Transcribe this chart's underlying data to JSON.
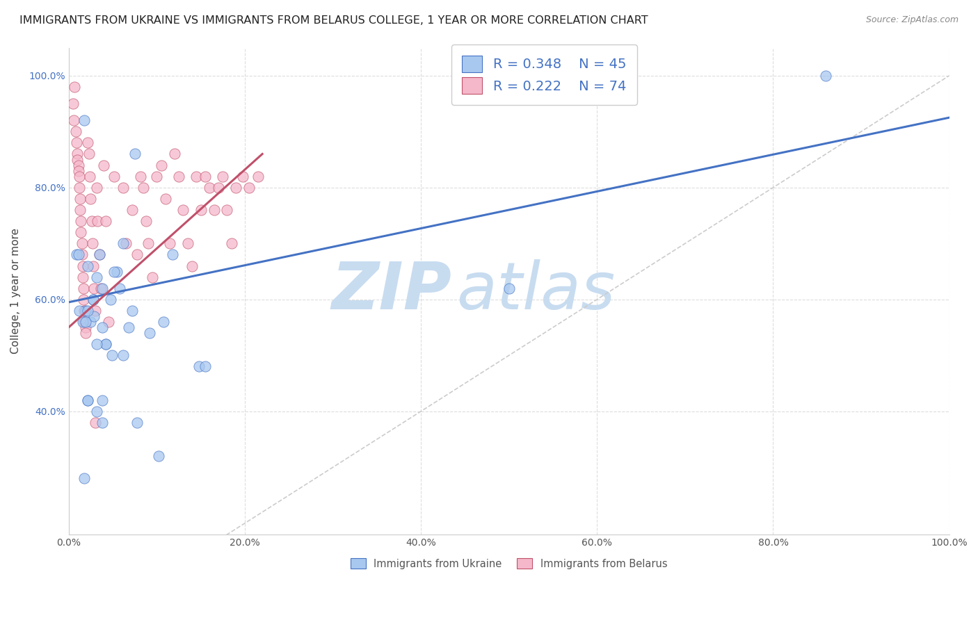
{
  "title": "IMMIGRANTS FROM UKRAINE VS IMMIGRANTS FROM BELARUS COLLEGE, 1 YEAR OR MORE CORRELATION CHART",
  "source": "Source: ZipAtlas.com",
  "ylabel": "College, 1 year or more",
  "legend_r1": "R = 0.348",
  "legend_n1": "N = 45",
  "legend_r2": "R = 0.222",
  "legend_n2": "N = 74",
  "color_ukraine": "#A8C8F0",
  "color_belarus": "#F5B8CB",
  "line_color_ukraine": "#4472C4",
  "line_color_belarus": "#C0506A",
  "diagonal_color": "#CCCCCC",
  "watermark_zip_color": "#C8DCF0",
  "watermark_atlas_color": "#C8DCF0",
  "tick_color_right": "#4472C4",
  "ukraine_x": [
    0.86,
    0.018,
    0.035,
    0.048,
    0.025,
    0.055,
    0.038,
    0.028,
    0.016,
    0.042,
    0.009,
    0.019,
    0.029,
    0.052,
    0.012,
    0.075,
    0.038,
    0.032,
    0.022,
    0.011,
    0.068,
    0.042,
    0.058,
    0.032,
    0.022,
    0.108,
    0.092,
    0.148,
    0.019,
    0.062,
    0.049,
    0.022,
    0.155,
    0.072,
    0.038,
    0.032,
    0.018,
    0.5,
    0.038,
    0.028,
    0.022,
    0.062,
    0.118,
    0.102,
    0.078
  ],
  "ukraine_y": [
    1.0,
    0.92,
    0.68,
    0.6,
    0.56,
    0.65,
    0.62,
    0.6,
    0.56,
    0.52,
    0.68,
    0.58,
    0.57,
    0.65,
    0.58,
    0.86,
    0.55,
    0.64,
    0.66,
    0.68,
    0.55,
    0.52,
    0.62,
    0.52,
    0.58,
    0.56,
    0.54,
    0.48,
    0.56,
    0.5,
    0.5,
    0.42,
    0.48,
    0.58,
    0.38,
    0.4,
    0.28,
    0.62,
    0.42,
    0.6,
    0.42,
    0.7,
    0.68,
    0.32,
    0.38
  ],
  "belarus_x": [
    0.005,
    0.006,
    0.007,
    0.008,
    0.009,
    0.01,
    0.01,
    0.011,
    0.011,
    0.012,
    0.012,
    0.013,
    0.013,
    0.014,
    0.014,
    0.015,
    0.015,
    0.016,
    0.016,
    0.017,
    0.017,
    0.018,
    0.018,
    0.019,
    0.019,
    0.022,
    0.023,
    0.024,
    0.025,
    0.026,
    0.027,
    0.028,
    0.029,
    0.03,
    0.03,
    0.032,
    0.033,
    0.035,
    0.037,
    0.04,
    0.042,
    0.045,
    0.052,
    0.062,
    0.065,
    0.072,
    0.078,
    0.082,
    0.085,
    0.088,
    0.09,
    0.095,
    0.1,
    0.105,
    0.11,
    0.115,
    0.12,
    0.125,
    0.13,
    0.135,
    0.14,
    0.145,
    0.15,
    0.155,
    0.16,
    0.165,
    0.17,
    0.175,
    0.18,
    0.185,
    0.19,
    0.198,
    0.205,
    0.215
  ],
  "belarus_y": [
    0.95,
    0.92,
    0.98,
    0.9,
    0.88,
    0.86,
    0.85,
    0.84,
    0.83,
    0.82,
    0.8,
    0.78,
    0.76,
    0.74,
    0.72,
    0.7,
    0.68,
    0.66,
    0.64,
    0.62,
    0.6,
    0.58,
    0.56,
    0.55,
    0.54,
    0.88,
    0.86,
    0.82,
    0.78,
    0.74,
    0.7,
    0.66,
    0.62,
    0.58,
    0.38,
    0.8,
    0.74,
    0.68,
    0.62,
    0.84,
    0.74,
    0.56,
    0.82,
    0.8,
    0.7,
    0.76,
    0.68,
    0.82,
    0.8,
    0.74,
    0.7,
    0.64,
    0.82,
    0.84,
    0.78,
    0.7,
    0.86,
    0.82,
    0.76,
    0.7,
    0.66,
    0.82,
    0.76,
    0.82,
    0.8,
    0.76,
    0.8,
    0.82,
    0.76,
    0.7,
    0.8,
    0.82,
    0.8,
    0.82
  ],
  "ukraine_trend_x": [
    0.0,
    1.0
  ],
  "ukraine_trend_y": [
    0.595,
    0.925
  ],
  "belarus_trend_x": [
    0.0,
    0.22
  ],
  "belarus_trend_y": [
    0.55,
    0.86
  ],
  "xlim": [
    0.0,
    1.0
  ],
  "ylim": [
    0.18,
    1.05
  ],
  "xticks": [
    0.0,
    0.2,
    0.4,
    0.6,
    0.8,
    1.0
  ],
  "yticks": [
    0.4,
    0.6,
    0.8,
    1.0
  ],
  "xtick_labels": [
    "0.0%",
    "20.0%",
    "40.0%",
    "60.0%",
    "80.0%",
    "100.0%"
  ],
  "ytick_labels": [
    "40.0%",
    "60.0%",
    "80.0%",
    "100.0%"
  ]
}
